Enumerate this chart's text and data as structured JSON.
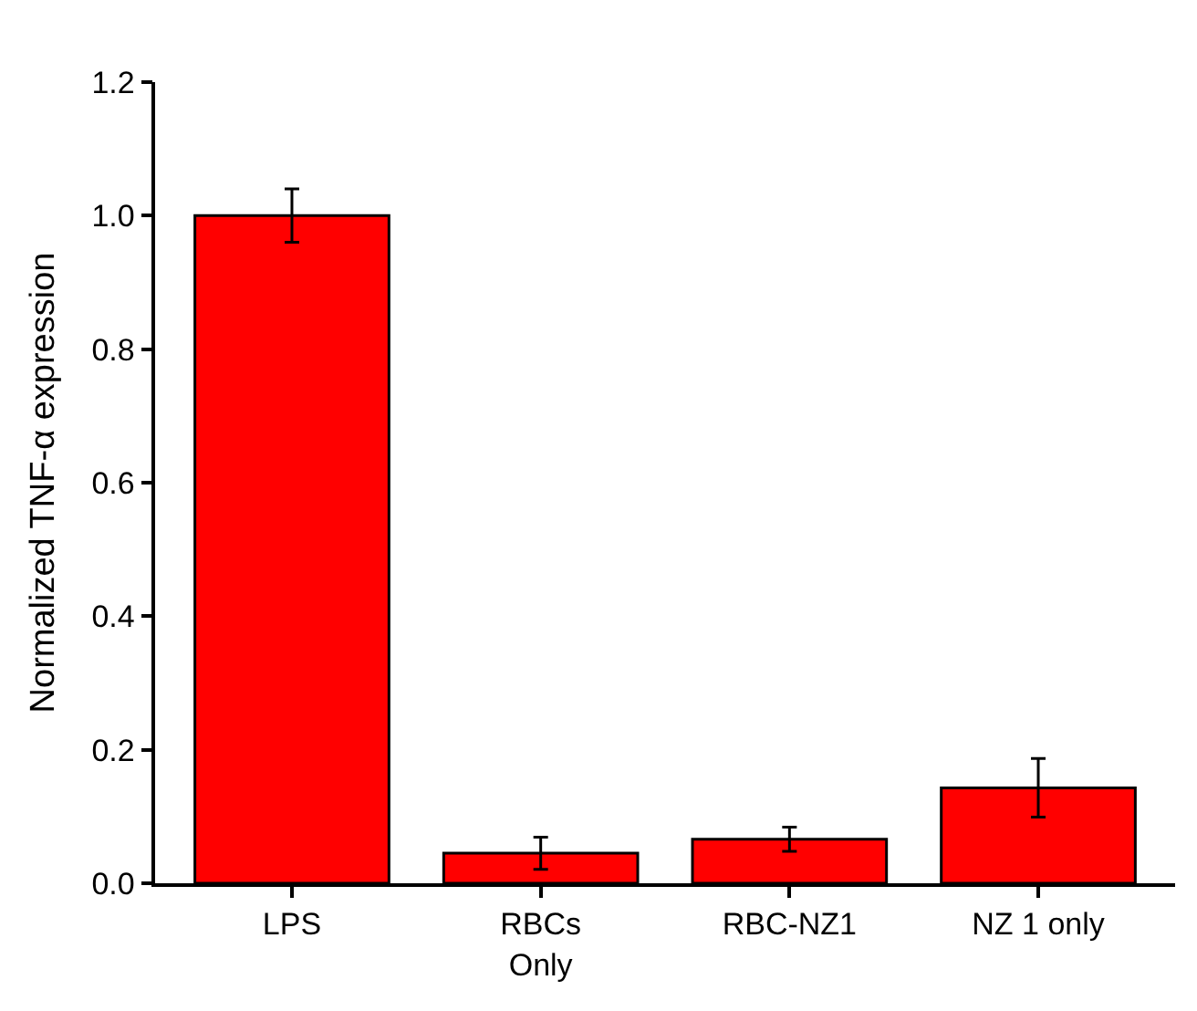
{
  "chart_data": {
    "type": "bar",
    "ylabel": "Normalized TNF-α expression",
    "categories": [
      "LPS",
      "RBCs\nOnly",
      "RBC-NZ1",
      "NZ 1 only"
    ],
    "values": [
      1.0,
      0.045,
      0.066,
      0.143
    ],
    "errors": [
      0.04,
      0.024,
      0.018,
      0.044
    ],
    "color": "#ff0000",
    "ylim": [
      0,
      1.2
    ],
    "yticks": [
      {
        "value": 0,
        "label": "0.0"
      },
      0.2,
      0.4,
      0.6,
      0.8,
      {
        "value": 1,
        "label": "1.0"
      },
      1.2
    ]
  }
}
